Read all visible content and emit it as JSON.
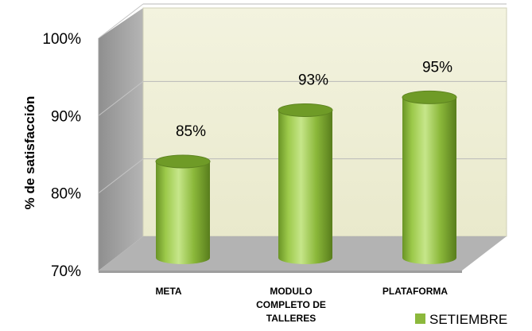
{
  "chart_data": {
    "type": "bar",
    "style": "3d-cylinder",
    "categories": [
      [
        "META"
      ],
      [
        "MODULO",
        "COMPLETO DE",
        "TALLERES"
      ],
      [
        "PLATAFORMA"
      ]
    ],
    "series": [
      {
        "name": "SETIEMBRE",
        "values": [
          85,
          93,
          95
        ],
        "color": "#8cb83c"
      }
    ],
    "value_labels": [
      "85%",
      "93%",
      "95%"
    ],
    "ylabel": "% de satisfacción",
    "ylim": [
      70,
      100
    ],
    "yticks": [
      "70%",
      "80%",
      "90%",
      "100%"
    ],
    "grid": true,
    "legend": "bottom-right",
    "colors": {
      "wall": "#efefd6",
      "floor": "#b4b4b4",
      "side_wall": "#9a9a9a",
      "grid": "#b8b8b8"
    }
  }
}
